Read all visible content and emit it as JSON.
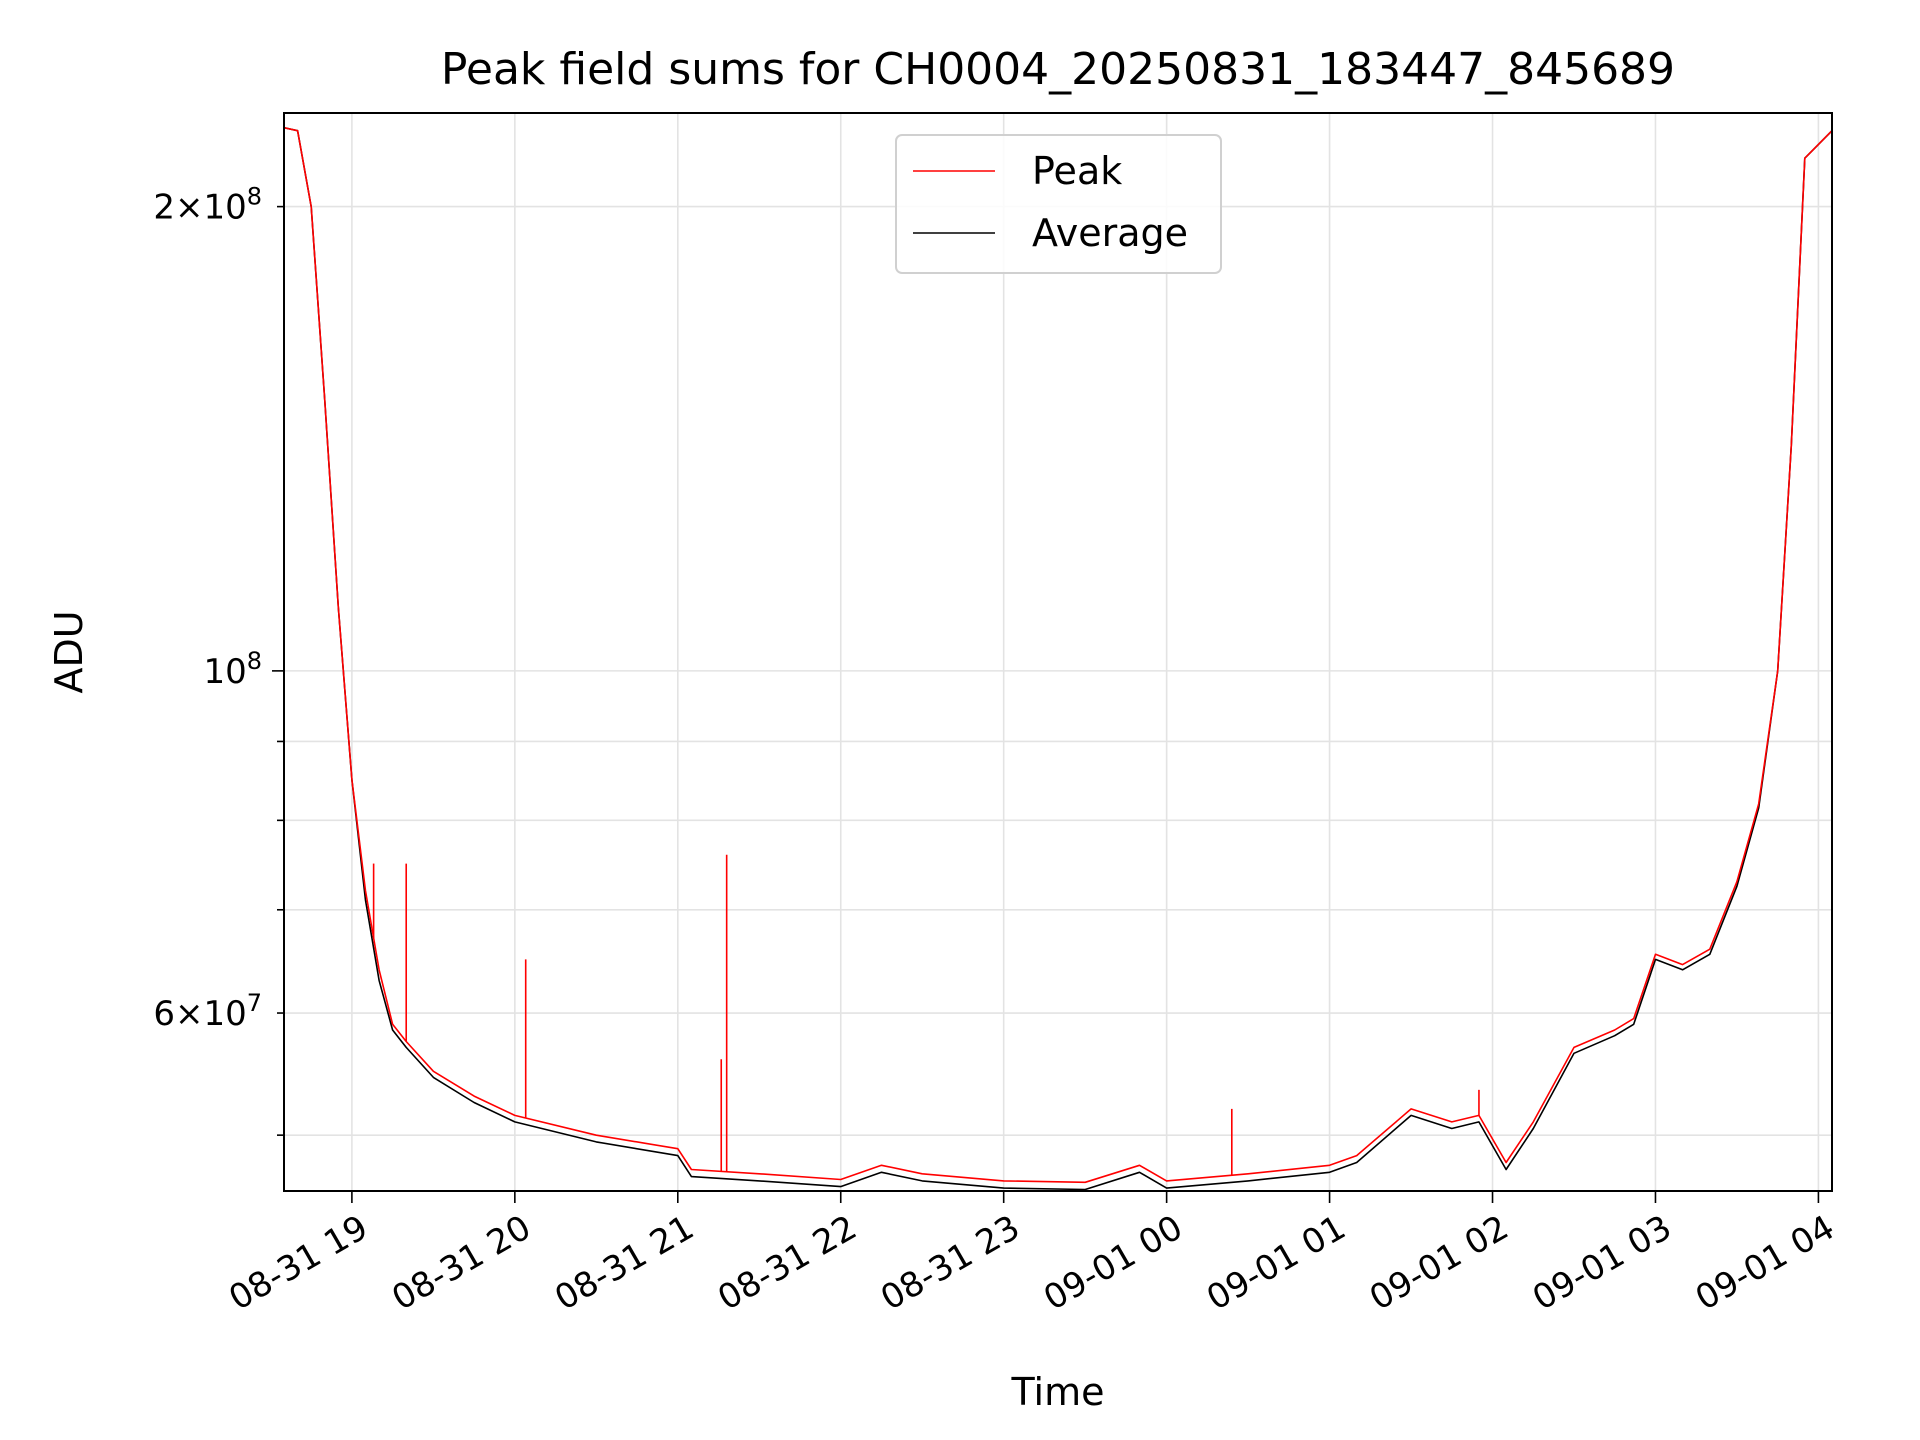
{
  "chart_data": {
    "type": "line",
    "title": "Peak field sums for CH0004_20250831_183447_845689",
    "xlabel": "Time",
    "ylabel": "ADU",
    "yscale": "log",
    "xlim": [
      "2025-08-31 18:35",
      "2025-09-01 04:05"
    ],
    "ylim": [
      46000000,
      230000000
    ],
    "grid": true,
    "legend_position": "upper center",
    "x_ticks": [
      "08-31 19",
      "08-31 20",
      "08-31 21",
      "08-31 22",
      "08-31 23",
      "09-01 00",
      "09-01 01",
      "09-01 02",
      "09-01 03",
      "09-01 04"
    ],
    "y_ticks_major": [
      {
        "value": 100000000,
        "label": "10^8"
      }
    ],
    "y_ticks_minor": [
      {
        "value": 50000000,
        "label": ""
      },
      {
        "value": 60000000,
        "label": "6×10^7"
      },
      {
        "value": 70000000,
        "label": ""
      },
      {
        "value": 80000000,
        "label": ""
      },
      {
        "value": 90000000,
        "label": ""
      },
      {
        "value": 200000000,
        "label": "2×10^8"
      }
    ],
    "series": [
      {
        "name": "Peak",
        "color": "#ff0000",
        "x": [
          "2025-08-31 18:35",
          "2025-08-31 18:40",
          "2025-08-31 18:45",
          "2025-08-31 18:50",
          "2025-08-31 18:55",
          "2025-08-31 19:00",
          "2025-08-31 19:05",
          "2025-08-31 19:10",
          "2025-08-31 19:15",
          "2025-08-31 19:20",
          "2025-08-31 19:30",
          "2025-08-31 19:45",
          "2025-08-31 20:00",
          "2025-08-31 20:30",
          "2025-08-31 21:00",
          "2025-08-31 21:05",
          "2025-08-31 21:30",
          "2025-08-31 22:00",
          "2025-08-31 22:15",
          "2025-08-31 22:30",
          "2025-08-31 23:00",
          "2025-08-31 23:30",
          "2025-08-31 23:50",
          "2025-09-01 00:00",
          "2025-09-01 00:30",
          "2025-09-01 01:00",
          "2025-09-01 01:10",
          "2025-09-01 01:30",
          "2025-09-01 01:45",
          "2025-09-01 01:55",
          "2025-09-01 02:05",
          "2025-09-01 02:15",
          "2025-09-01 02:30",
          "2025-09-01 02:45",
          "2025-09-01 02:52",
          "2025-09-01 03:00",
          "2025-09-01 03:10",
          "2025-09-01 03:20",
          "2025-09-01 03:30",
          "2025-09-01 03:38",
          "2025-09-01 03:45",
          "2025-09-01 03:50",
          "2025-09-01 03:55",
          "2025-09-01 04:05"
        ],
        "y": [
          225000000,
          224000000,
          200000000,
          150000000,
          110000000,
          85000000,
          72000000,
          64000000,
          59000000,
          57500000,
          55000000,
          53000000,
          51500000,
          50000000,
          49000000,
          47500000,
          47200000,
          46800000,
          47800000,
          47200000,
          46700000,
          46600000,
          47800000,
          46700000,
          47200000,
          47800000,
          48500000,
          52000000,
          51000000,
          51500000,
          48000000,
          51000000,
          57000000,
          58500000,
          59500000,
          65500000,
          64500000,
          66000000,
          73000000,
          82000000,
          100000000,
          140000000,
          215000000,
          224000000
        ]
      },
      {
        "name": "Average",
        "color": "#000000",
        "x": [
          "2025-08-31 18:35",
          "2025-08-31 18:40",
          "2025-08-31 18:45",
          "2025-08-31 18:50",
          "2025-08-31 18:55",
          "2025-08-31 19:00",
          "2025-08-31 19:05",
          "2025-08-31 19:10",
          "2025-08-31 19:15",
          "2025-08-31 19:20",
          "2025-08-31 19:30",
          "2025-08-31 19:45",
          "2025-08-31 20:00",
          "2025-08-31 20:30",
          "2025-08-31 21:00",
          "2025-08-31 21:05",
          "2025-08-31 21:30",
          "2025-08-31 22:00",
          "2025-08-31 22:15",
          "2025-08-31 22:30",
          "2025-08-31 23:00",
          "2025-08-31 23:30",
          "2025-08-31 23:50",
          "2025-09-01 00:00",
          "2025-09-01 00:30",
          "2025-09-01 01:00",
          "2025-09-01 01:10",
          "2025-09-01 01:30",
          "2025-09-01 01:45",
          "2025-09-01 01:55",
          "2025-09-01 02:05",
          "2025-09-01 02:15",
          "2025-09-01 02:30",
          "2025-09-01 02:45",
          "2025-09-01 02:52",
          "2025-09-01 03:00",
          "2025-09-01 03:10",
          "2025-09-01 03:20",
          "2025-09-01 03:30",
          "2025-09-01 03:38",
          "2025-09-01 03:45",
          "2025-09-01 03:50",
          "2025-09-01 03:55",
          "2025-09-01 04:05"
        ],
        "y": [
          225000000,
          224000000,
          200000000,
          150000000,
          110000000,
          85000000,
          71000000,
          63000000,
          58500000,
          57000000,
          54500000,
          52500000,
          51000000,
          49500000,
          48500000,
          47000000,
          46700000,
          46300000,
          47300000,
          46700000,
          46200000,
          46100000,
          47300000,
          46200000,
          46700000,
          47300000,
          48000000,
          51500000,
          50500000,
          51000000,
          47500000,
          50500000,
          56500000,
          58000000,
          59000000,
          65000000,
          64000000,
          65500000,
          72500000,
          81500000,
          100000000,
          140000000,
          215000000,
          224000000
        ]
      }
    ],
    "spikes": [
      {
        "series": "Peak",
        "x": "2025-08-31 19:08",
        "y": 75000000
      },
      {
        "series": "Peak",
        "x": "2025-08-31 19:20",
        "y": 75000000
      },
      {
        "series": "Peak",
        "x": "2025-08-31 20:04",
        "y": 65000000
      },
      {
        "series": "Peak",
        "x": "2025-08-31 21:18",
        "y": 76000000
      },
      {
        "series": "Peak",
        "x": "2025-08-31 21:16",
        "y": 56000000
      },
      {
        "series": "Peak",
        "x": "2025-09-01 00:24",
        "y": 52000000
      },
      {
        "series": "Peak",
        "x": "2025-09-01 01:55",
        "y": 53500000
      }
    ]
  }
}
